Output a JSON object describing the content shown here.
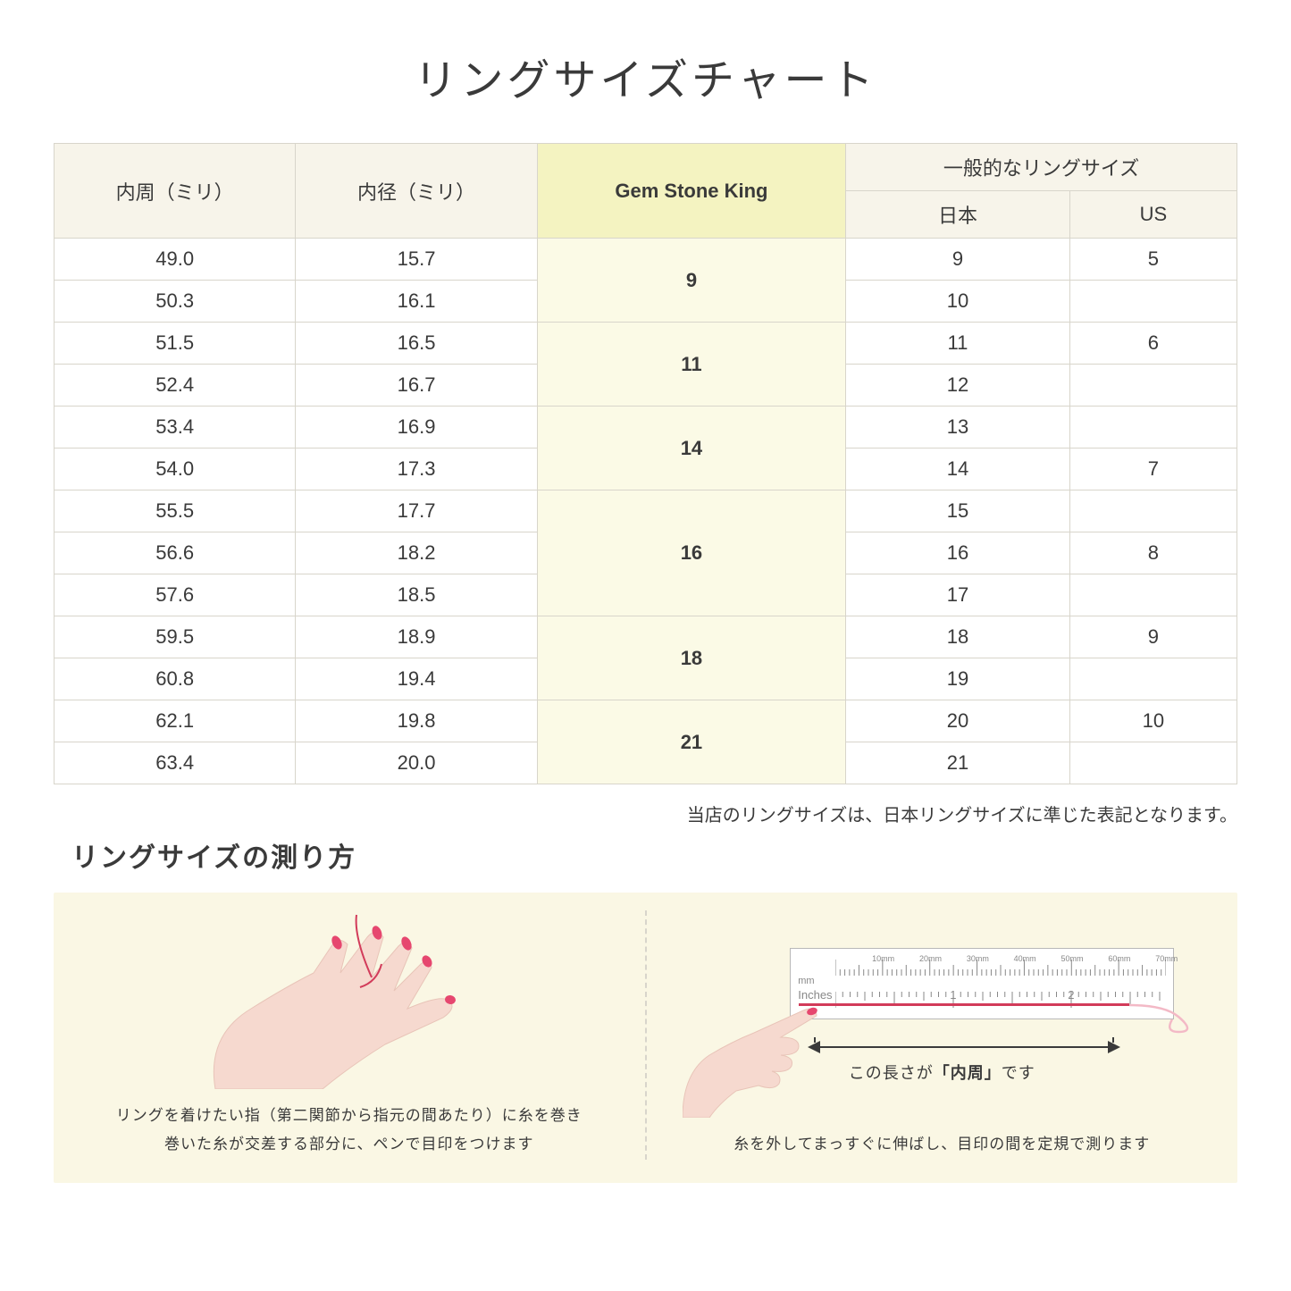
{
  "title": "リングサイズチャート",
  "table": {
    "headers": {
      "col1": "内周（ミリ）",
      "col2": "内径（ミリ）",
      "col3": "Gem Stone King",
      "col4_group": "一般的なリングサイズ",
      "col4a": "日本",
      "col4b": "US"
    },
    "groups": [
      {
        "gsk": "9",
        "rows": [
          {
            "c": "49.0",
            "d": "15.7",
            "jp": "9",
            "us": "5"
          },
          {
            "c": "50.3",
            "d": "16.1",
            "jp": "10",
            "us": ""
          }
        ]
      },
      {
        "gsk": "11",
        "rows": [
          {
            "c": "51.5",
            "d": "16.5",
            "jp": "11",
            "us": "6"
          },
          {
            "c": "52.4",
            "d": "16.7",
            "jp": "12",
            "us": ""
          }
        ]
      },
      {
        "gsk": "14",
        "rows": [
          {
            "c": "53.4",
            "d": "16.9",
            "jp": "13",
            "us": ""
          },
          {
            "c": "54.0",
            "d": "17.3",
            "jp": "14",
            "us": "7"
          }
        ]
      },
      {
        "gsk": "16",
        "rows": [
          {
            "c": "55.5",
            "d": "17.7",
            "jp": "15",
            "us": ""
          },
          {
            "c": "56.6",
            "d": "18.2",
            "jp": "16",
            "us": "8"
          },
          {
            "c": "57.6",
            "d": "18.5",
            "jp": "17",
            "us": ""
          }
        ]
      },
      {
        "gsk": "18",
        "rows": [
          {
            "c": "59.5",
            "d": "18.9",
            "jp": "18",
            "us": "9"
          },
          {
            "c": "60.8",
            "d": "19.4",
            "jp": "19",
            "us": ""
          }
        ]
      },
      {
        "gsk": "21",
        "rows": [
          {
            "c": "62.1",
            "d": "19.8",
            "jp": "20",
            "us": "10"
          },
          {
            "c": "63.4",
            "d": "20.0",
            "jp": "21",
            "us": ""
          }
        ]
      }
    ]
  },
  "note": "当店のリングサイズは、日本リングサイズに準じた表記となります。",
  "subtitle": "リングサイズの測り方",
  "left_caption_line1": "リングを着けたい指（第二関節から指元の間あたり）に糸を巻き",
  "left_caption_line2": "巻いた糸が交差する部分に、ペンで目印をつけます",
  "right_arrow_prefix": "この長さが",
  "right_arrow_bold": "「内周」",
  "right_arrow_suffix": "です",
  "right_caption": "糸を外してまっすぐに伸ばし、目印の間を定規で測ります",
  "ruler": {
    "mm_label": "mm",
    "in_label": "Inches",
    "mm_marks": [
      "10mm",
      "20mm",
      "30mm",
      "40mm",
      "50mm",
      "60mm",
      "70mm"
    ],
    "in_marks": [
      "1",
      "2"
    ]
  },
  "colors": {
    "header_bg": "#f7f4ea",
    "highlight_header_bg": "#f4f3c1",
    "highlight_cell_bg": "#fbfae6",
    "border": "#d8d5cb",
    "instruction_bg": "#faf7e4",
    "thread": "#d23b5a",
    "skin": "#f6d9cf",
    "nail": "#e6476f"
  }
}
